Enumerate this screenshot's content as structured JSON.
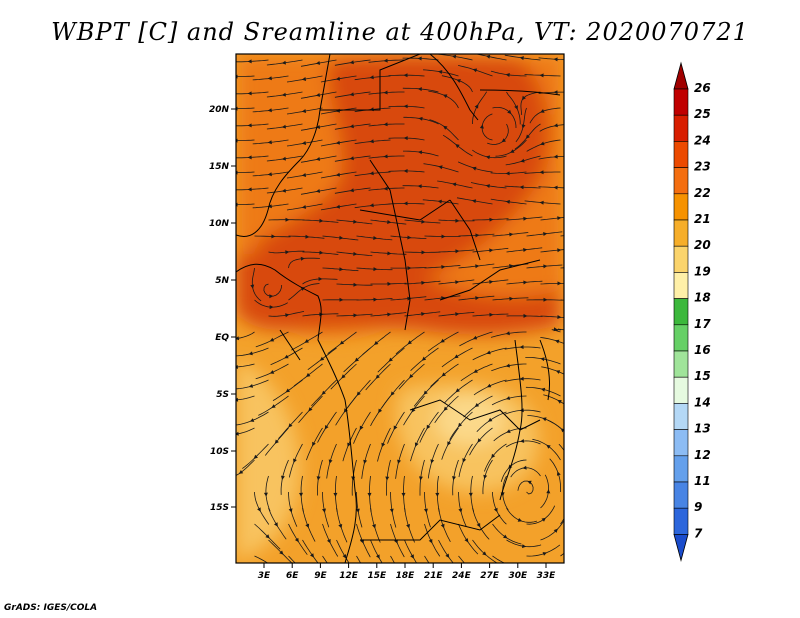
{
  "title": "WBPT [C] and Sreamline at 400hPa, VT: 2020070721",
  "credit": "GrADS: IGES/COLA",
  "map": {
    "lat_labels": [
      "20N",
      "15N",
      "10N",
      "5N",
      "EQ",
      "5S",
      "10S",
      "15S"
    ],
    "lon_labels": [
      "3E",
      "6E",
      "9E",
      "12E",
      "15E",
      "18E",
      "21E",
      "24E",
      "27E",
      "30E",
      "33E"
    ]
  },
  "colorbar": {
    "levels": [
      "26",
      "25",
      "24",
      "23",
      "22",
      "21",
      "20",
      "19",
      "18",
      "17",
      "16",
      "15",
      "14",
      "13",
      "12",
      "11",
      "9",
      "7"
    ],
    "colors": [
      "#c00000",
      "#d81e00",
      "#ec4a00",
      "#f46e10",
      "#f69200",
      "#f6ae2a",
      "#fbd46c",
      "#fff0a8",
      "#3cb83c",
      "#66d066",
      "#a0e49a",
      "#e6fae0",
      "#b4d8f6",
      "#8cbcf4",
      "#64a0ec",
      "#4884e4",
      "#2c66dc",
      "#1e50d2"
    ],
    "top_color": "#a00000",
    "bottom_color": "#1a4ccc"
  },
  "colors": {
    "hot": "#d84a08",
    "warm": "#ee7a14",
    "mid": "#f3a12a",
    "cool": "#f8c35e",
    "pale": "#fbd98a"
  }
}
